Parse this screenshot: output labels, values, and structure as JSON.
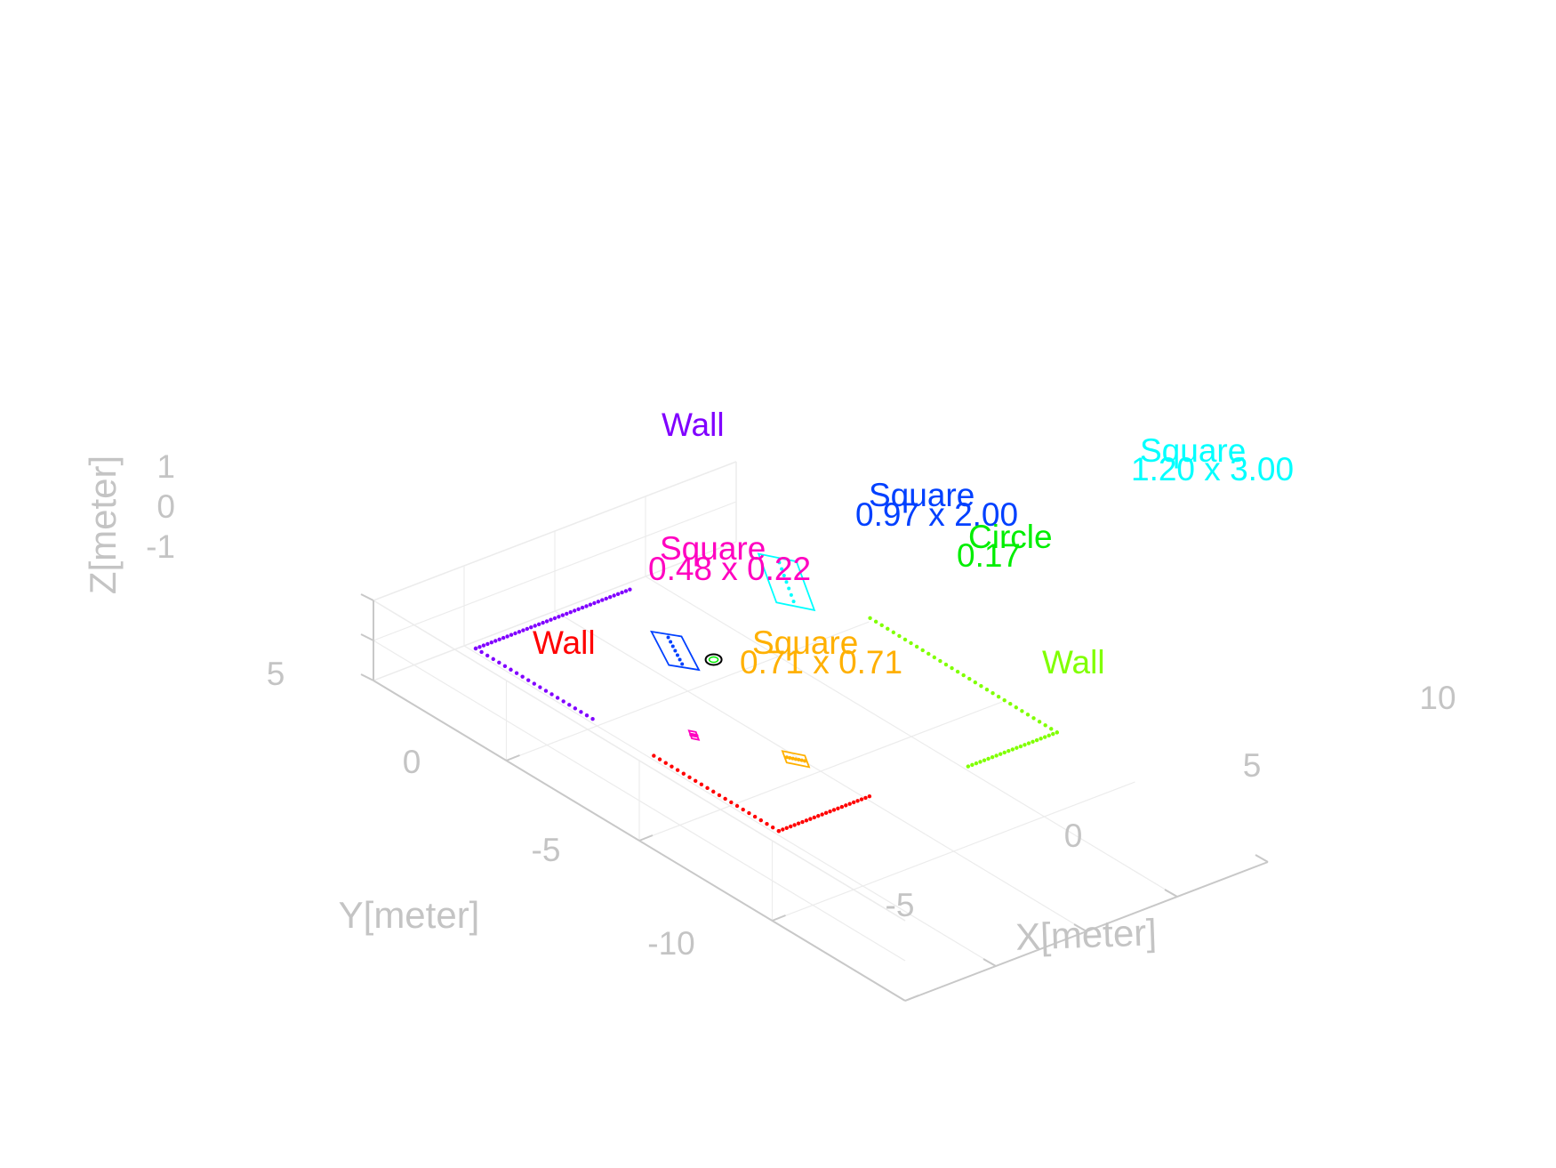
{
  "chart_data": {
    "type": "scatter",
    "projection": "3d",
    "axes": {
      "xlabel": "X[meter]",
      "ylabel": "Y[meter]",
      "zlabel": "Z[meter]",
      "xlim": [
        -10,
        10
      ],
      "ylim": [
        -10,
        10
      ],
      "zlim": [
        -1,
        1
      ],
      "xticks": [
        "-5",
        "0",
        "5",
        "10"
      ],
      "yticks": [
        "-10",
        "-5",
        "0",
        "5"
      ],
      "zticks": [
        "-1",
        "0",
        "1"
      ],
      "grid": true
    },
    "walls": [
      {
        "name": "wall-purple",
        "label": "Wall",
        "color": "#8000ff",
        "points": [
          [
            -7,
            3.8
          ],
          [
            -7,
            8.2
          ],
          [
            1.5,
            8.2
          ]
        ]
      },
      {
        "name": "wall-red",
        "label": "Wall",
        "color": "#ff0000",
        "points": [
          [
            -7,
            1.5
          ],
          [
            -7,
            -3.2
          ],
          [
            -2,
            -3.2
          ]
        ]
      },
      {
        "name": "wall-green",
        "label": "Wall",
        "color": "#80ff00",
        "points": [
          [
            3,
            -3.5
          ],
          [
            7.9,
            -3.5
          ],
          [
            8,
            3.6
          ]
        ]
      }
    ],
    "objects": [
      {
        "name": "square-cyan",
        "shape": "Square",
        "size": "1.20 x 3.00",
        "color": "#00ffff",
        "center": [
          7.2,
          6.2
        ],
        "dims": [
          1.2,
          3.0
        ],
        "angle": -45
      },
      {
        "name": "square-blue",
        "shape": "Square",
        "size": "0.97 x 2.00",
        "color": "#0040ff",
        "center": [
          -0.4,
          5.2
        ],
        "dims": [
          0.97,
          2.0
        ],
        "angle": -40
      },
      {
        "name": "circle-green",
        "shape": "Circle",
        "size": "0.17",
        "color": "#00ee00",
        "center": [
          0.4,
          4.3
        ],
        "radius": 0.17
      },
      {
        "name": "square-magenta",
        "shape": "Square",
        "size": "0.48 x 0.22",
        "color": "#ff00c0",
        "center": [
          -4.5,
          1.7
        ],
        "dims": [
          0.48,
          0.22
        ],
        "angle": 45
      },
      {
        "name": "square-orange",
        "shape": "Square",
        "size": "0.71 x 0.71",
        "color": "#ffb000",
        "center": [
          -2.4,
          -0.7
        ],
        "dims": [
          0.71,
          0.71
        ],
        "angle": 45
      }
    ]
  }
}
